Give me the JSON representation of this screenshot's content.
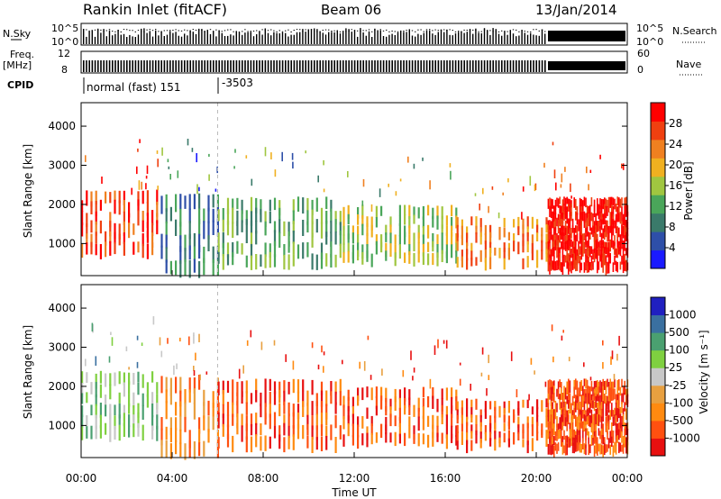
{
  "header": {
    "station": "Rankin Inlet (fitACF)",
    "beam": "Beam 06",
    "date": "13/Jan/2014"
  },
  "strips": {
    "nsky_label": "N.Sky",
    "nsky_ticks": [
      "10^5",
      "10^0"
    ],
    "nsearch_label": "N.Search",
    "nsearch_ticks": [
      "10^5",
      "10^0"
    ],
    "freq_label": "Freq.",
    "freq_unit": "[MHz]",
    "freq_ticks": [
      "12",
      "8"
    ],
    "nave_label": "Nave",
    "nave_ticks": [
      "60",
      "0"
    ],
    "cpid_label": "CPID",
    "cpid_mode": "normal (fast) 151",
    "cpid_alt": "-3503"
  },
  "panels": {
    "power_ylabel": "Slant Range [km]",
    "velocity_ylabel": "Slant Range [km]",
    "power_cbar_label": "Power [dB]",
    "velocity_cbar_label": "Velocity [m s⁻¹]"
  },
  "xaxis": {
    "label": "Time UT",
    "ticks": [
      "00:00",
      "04:00",
      "08:00",
      "12:00",
      "16:00",
      "20:00",
      "00:00"
    ]
  },
  "colors": {
    "power": [
      "#1a1aff",
      "#2e4fa8",
      "#3a7a6a",
      "#4aa65a",
      "#a0c640",
      "#f0b020",
      "#f08020",
      "#f04010",
      "#ff0000"
    ],
    "velocity": [
      "#e81010",
      "#ff5010",
      "#ff8a10",
      "#e8a040",
      "#c8c8c8",
      "#7fd040",
      "#4aa070",
      "#3a70a0",
      "#2020c0"
    ]
  },
  "chart_data": [
    {
      "type": "heatmap",
      "title": "Power [dB]",
      "xlabel": "Time UT",
      "ylabel": "Slant Range [km]",
      "xlim": [
        0,
        24
      ],
      "ylim": [
        180,
        4600
      ],
      "yticks": [
        1000,
        2000,
        3000,
        4000
      ],
      "colorbar": {
        "label": "Power [dB]",
        "ticks": [
          4,
          8,
          12,
          16,
          20,
          24,
          28
        ],
        "range": [
          0,
          32
        ]
      },
      "series": [
        {
          "name": "",
          "time_start": 0.0,
          "time_end": 3.5,
          "range_min": 800,
          "range_max": 2400,
          "value": 27
        },
        {
          "name": "",
          "time_start": 3.5,
          "time_end": 6.0,
          "range_min": 300,
          "range_max": 2300,
          "value": 10
        },
        {
          "name": "",
          "time_start": 6.0,
          "time_end": 11.5,
          "range_min": 500,
          "range_max": 2200,
          "value": 13
        },
        {
          "name": "",
          "time_start": 11.5,
          "time_end": 16.5,
          "range_min": 600,
          "range_max": 2000,
          "value": 17
        },
        {
          "name": "",
          "time_start": 16.5,
          "time_end": 20.5,
          "range_min": 500,
          "range_max": 1700,
          "value": 23
        },
        {
          "name": "",
          "time_start": 20.5,
          "time_end": 24.0,
          "range_min": 400,
          "range_max": 2200,
          "value": 29
        }
      ]
    },
    {
      "type": "heatmap",
      "title": "Velocity [m s⁻¹]",
      "xlabel": "Time UT",
      "ylabel": "Slant Range [km]",
      "xlim": [
        0,
        24
      ],
      "ylim": [
        180,
        4600
      ],
      "yticks": [
        1000,
        2000,
        3000,
        4000
      ],
      "colorbar": {
        "label": "Velocity [m s⁻¹]",
        "ticks": [
          1000,
          500,
          100,
          25,
          -25,
          -100,
          -500,
          -1000
        ]
      },
      "series": [
        {
          "name": "",
          "time_start": 0.0,
          "time_end": 3.5,
          "range_min": 800,
          "range_max": 2400,
          "value": 50
        },
        {
          "name": "",
          "time_start": 3.5,
          "time_end": 6.0,
          "range_min": 300,
          "range_max": 2300,
          "value": -50
        },
        {
          "name": "",
          "time_start": 6.0,
          "time_end": 11.5,
          "range_min": 500,
          "range_max": 2200,
          "value": -150
        },
        {
          "name": "",
          "time_start": 11.5,
          "time_end": 16.5,
          "range_min": 600,
          "range_max": 2000,
          "value": -200
        },
        {
          "name": "",
          "time_start": 16.5,
          "time_end": 20.5,
          "range_min": 500,
          "range_max": 1700,
          "value": -150
        },
        {
          "name": "",
          "time_start": 20.5,
          "time_end": 24.0,
          "range_min": 400,
          "range_max": 2200,
          "value": -400
        }
      ]
    }
  ]
}
